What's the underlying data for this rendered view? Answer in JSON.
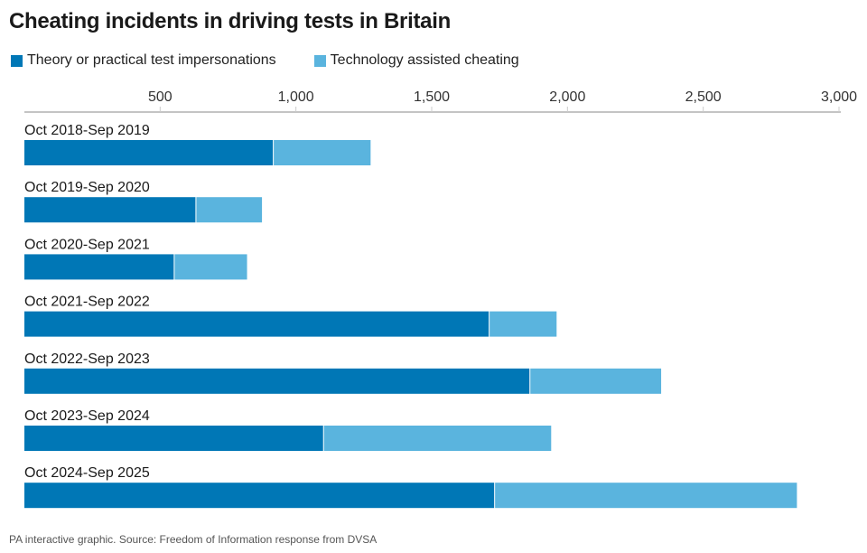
{
  "title": "Cheating incidents in driving tests in Britain",
  "source": "PA interactive graphic. Source: Freedom of Information response from DVSA",
  "colors": {
    "series1": "#0077b6",
    "series2": "#5ab4de",
    "tick": "#cccccc",
    "axis": "#888888"
  },
  "chart_data": {
    "type": "bar",
    "orientation": "horizontal",
    "stacked": true,
    "categories": [
      "Oct 2018-Sep 2019",
      "Oct 2019-Sep 2020",
      "Oct 2020-Sep 2021",
      "Oct 2021-Sep 2022",
      "Oct 2022-Sep 2023",
      "Oct 2023-Sep 2024",
      "Oct 2024-Sep 2025"
    ],
    "series": [
      {
        "name": "Theory or practical test impersonations",
        "values": [
          915,
          630,
          550,
          1710,
          1860,
          1100,
          1730
        ]
      },
      {
        "name": "Technology assisted cheating",
        "values": [
          360,
          245,
          270,
          250,
          485,
          840,
          1115
        ]
      }
    ],
    "xlim": [
      0,
      3000
    ],
    "xticks": [
      500,
      1000,
      1500,
      2000,
      2500,
      3000
    ],
    "xtick_labels": [
      "500",
      "1,000",
      "1,500",
      "2,000",
      "2,500",
      "3,000"
    ],
    "legend": "top-left",
    "grid": false
  }
}
